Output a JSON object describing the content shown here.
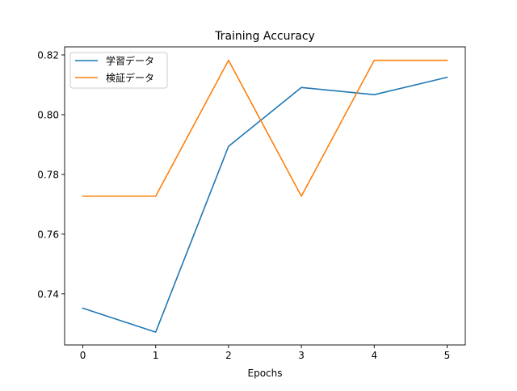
{
  "chart_data": {
    "type": "line",
    "title": "Training Accuracy",
    "xlabel": "Epochs",
    "ylabel": "",
    "x": [
      0,
      1,
      2,
      3,
      4,
      5
    ],
    "xlim": [
      -0.25,
      5.25
    ],
    "ylim": [
      0.7229,
      0.8227
    ],
    "xticks": [
      "0",
      "1",
      "2",
      "3",
      "4",
      "5"
    ],
    "yticks": [
      {
        "value": 0.74,
        "label": "0.74"
      },
      {
        "value": 0.76,
        "label": "0.76"
      },
      {
        "value": 0.78,
        "label": "0.78"
      },
      {
        "value": 0.8,
        "label": "0.80"
      },
      {
        "value": 0.82,
        "label": "0.82"
      }
    ],
    "grid": false,
    "legend_position": "upper-left",
    "series": [
      {
        "name": "学習データ",
        "color": "#1f77b4",
        "values": [
          0.7352,
          0.7272,
          0.7894,
          0.8091,
          0.8067,
          0.8125
        ]
      },
      {
        "name": "検証データ",
        "color": "#ff7f0e",
        "values": [
          0.7727,
          0.7727,
          0.8182,
          0.7727,
          0.8182,
          0.8182
        ]
      }
    ]
  }
}
